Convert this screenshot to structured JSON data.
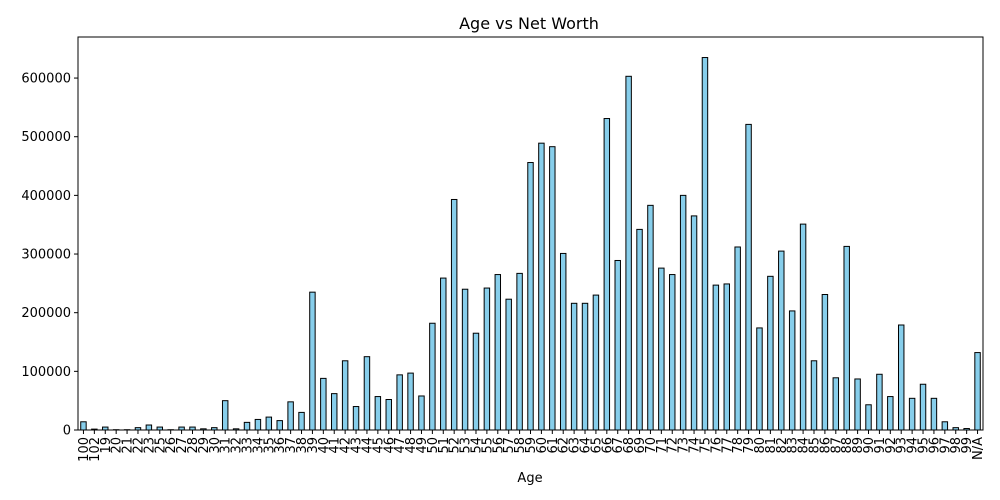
{
  "chart_data": {
    "type": "bar",
    "title": "Age vs Net Worth",
    "xlabel": "Age",
    "ylabel": "",
    "ylim": [
      0,
      670000
    ],
    "yticks": [
      0,
      100000,
      200000,
      300000,
      400000,
      500000,
      600000
    ],
    "bar_color": "#87ceeb",
    "edge_color": "#000000",
    "grid": false,
    "categories": [
      "100",
      "102",
      "19",
      "20",
      "21",
      "22",
      "23",
      "25",
      "26",
      "27",
      "28",
      "29",
      "30",
      "31",
      "32",
      "33",
      "34",
      "35",
      "36",
      "37",
      "38",
      "39",
      "40",
      "41",
      "42",
      "43",
      "44",
      "45",
      "46",
      "47",
      "48",
      "49",
      "50",
      "51",
      "52",
      "53",
      "54",
      "55",
      "56",
      "57",
      "58",
      "59",
      "60",
      "61",
      "62",
      "63",
      "64",
      "65",
      "66",
      "67",
      "68",
      "69",
      "70",
      "71",
      "72",
      "73",
      "74",
      "75",
      "76",
      "77",
      "78",
      "79",
      "80",
      "81",
      "82",
      "83",
      "84",
      "85",
      "86",
      "87",
      "88",
      "89",
      "90",
      "91",
      "92",
      "93",
      "94",
      "95",
      "96",
      "97",
      "98",
      "99",
      "N/A"
    ],
    "values": [
      14000,
      1500,
      5000,
      500,
      500,
      4000,
      8500,
      5000,
      500,
      5000,
      5000,
      2000,
      4000,
      50000,
      2000,
      13000,
      18000,
      22000,
      16000,
      48000,
      30000,
      235000,
      88000,
      62000,
      118000,
      40000,
      125000,
      57000,
      52000,
      94000,
      97000,
      58000,
      182000,
      259000,
      393000,
      240000,
      165000,
      242000,
      265000,
      223000,
      267000,
      456000,
      489000,
      483000,
      301000,
      216000,
      216000,
      230000,
      531000,
      289000,
      603000,
      342000,
      383000,
      276000,
      265000,
      400000,
      365000,
      635000,
      247000,
      249000,
      312000,
      521000,
      174000,
      262000,
      305000,
      203000,
      351000,
      118000,
      231000,
      89000,
      313000,
      87000,
      43000,
      95000,
      57000,
      179000,
      54000,
      78000,
      54000,
      14000,
      4000,
      2500,
      132000
    ]
  }
}
